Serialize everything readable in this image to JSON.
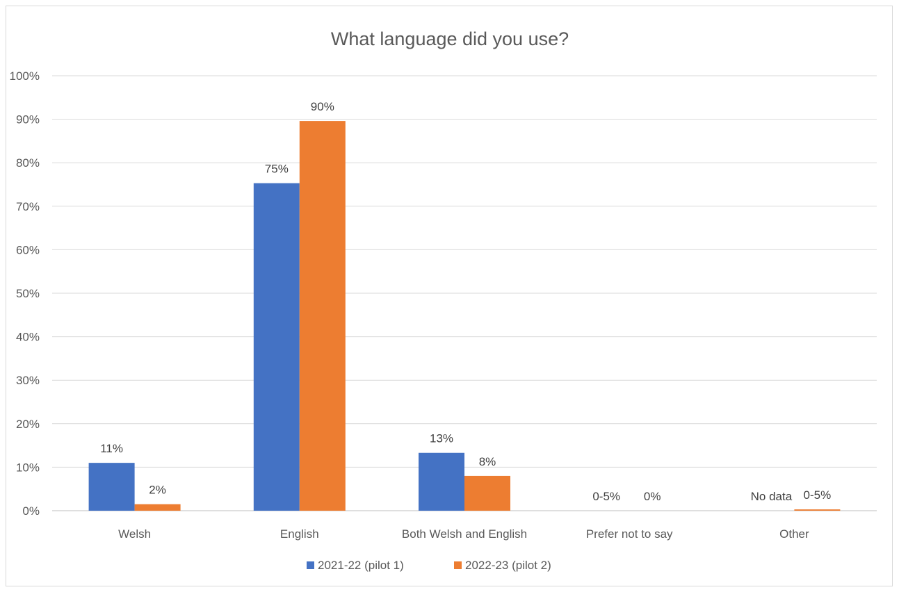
{
  "chart_data": {
    "type": "bar",
    "title": "What language did you use?",
    "xlabel": "",
    "ylabel": "",
    "ylim": [
      0,
      100
    ],
    "y_ticks": [
      "0%",
      "10%",
      "20%",
      "30%",
      "40%",
      "50%",
      "60%",
      "70%",
      "80%",
      "90%",
      "100%"
    ],
    "grid": true,
    "legend_position": "bottom",
    "categories": [
      "Welsh",
      "English",
      "Both Welsh and English",
      "Prefer not to say",
      "Other"
    ],
    "series": [
      {
        "name": "2021-22 (pilot 1)",
        "color": "#4472c4",
        "values": [
          11,
          75.3,
          13.3,
          0,
          0
        ],
        "labels": [
          "11%",
          "75%",
          "13%",
          "0-5%",
          "No data"
        ]
      },
      {
        "name": "2022-23 (pilot 2)",
        "color": "#ed7d31",
        "values": [
          1.5,
          89.6,
          8,
          0,
          0.3
        ],
        "labels": [
          "2%",
          "90%",
          "8%",
          "0%",
          "0-5%"
        ]
      }
    ]
  }
}
